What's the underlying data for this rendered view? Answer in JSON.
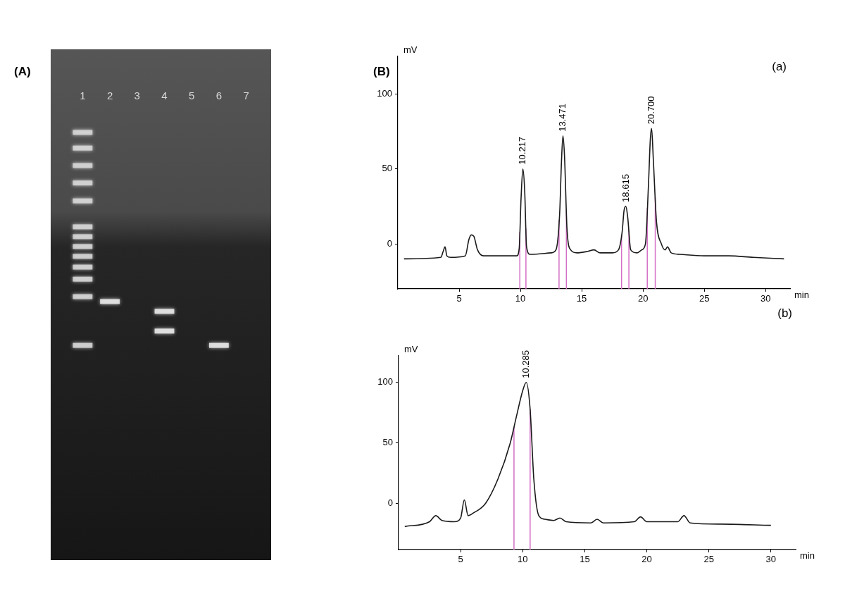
{
  "chart_data": [
    {
      "type": "gel",
      "title": "(A)",
      "categories": [
        "1",
        "2",
        "3",
        "4",
        "5",
        "6",
        "7"
      ],
      "bands": [
        [
          4.4,
          7.9,
          11.8,
          15.7,
          19.7,
          25.5,
          27.7,
          29.9,
          32.1,
          34.5,
          37.2,
          41.1,
          52
        ],
        [
          42.2
        ],
        [],
        [
          44.4,
          48.8
        ],
        [],
        [
          52
        ],
        []
      ],
      "ylim": [
        0,
        100
      ],
      "tick_labels": "x"
    },
    {
      "type": "line",
      "title": "(B)",
      "annotations": [
        "(a)"
      ],
      "x_label": "min",
      "y_label": "mV",
      "xlim": [
        0,
        32
      ],
      "xticks": [
        5,
        10,
        15,
        20,
        25,
        30
      ],
      "ylim": [
        -30,
        125
      ],
      "yticks": [
        0,
        50,
        100
      ],
      "grid": false,
      "x": [
        0.5,
        3.5,
        3.7,
        3.85,
        4.0,
        4.3,
        5.5,
        5.8,
        6.0,
        6.2,
        6.5,
        7,
        9.7,
        9.9,
        10.05,
        10.2,
        10.35,
        10.5,
        10.8,
        12.5,
        12.9,
        13.2,
        13.35,
        13.47,
        13.6,
        13.8,
        14.1,
        14.6,
        15.5,
        16,
        16.5,
        17.5,
        18.0,
        18.3,
        18.45,
        18.6,
        18.75,
        19.0,
        19.5,
        19.9,
        20.2,
        20.45,
        20.6,
        20.7,
        20.85,
        21.1,
        21.5,
        21.8,
        22.0,
        22.3,
        23,
        25,
        27,
        29,
        31.5
      ],
      "series": [
        {
          "color": "#1a1a1a",
          "values": [
            -10,
            -9,
            -5,
            -2,
            -8,
            -9,
            -8,
            3,
            6,
            5,
            -4,
            -8,
            -8,
            -3,
            30,
            50,
            35,
            -2,
            -7,
            -6,
            -4,
            20,
            55,
            72,
            58,
            10,
            -4,
            -6,
            -5,
            -4,
            -6,
            -6,
            -4,
            8,
            22,
            25,
            18,
            -4,
            -6,
            -4,
            0,
            40,
            70,
            77,
            55,
            15,
            0,
            -4,
            -2,
            -6,
            -7,
            -8,
            -8,
            -9,
            -10
          ]
        }
      ],
      "peak_labels": [
        {
          "value": 10.217,
          "label": "10.217"
        },
        {
          "value": 13.471,
          "label": "13.471"
        },
        {
          "value": 18.615,
          "label": "18.615"
        },
        {
          "value": 20.7,
          "label": "20.700"
        }
      ],
      "integration_marks": [
        [
          9.95,
          10.45
        ],
        [
          13.15,
          13.75
        ],
        [
          18.25,
          18.85
        ],
        [
          20.35,
          21.0
        ]
      ]
    },
    {
      "type": "line",
      "annotations": [
        "(b)"
      ],
      "x_label": "min",
      "y_label": "mV",
      "xlim": [
        0,
        32
      ],
      "xticks": [
        5,
        10,
        15,
        20,
        25,
        30
      ],
      "ylim": [
        -38,
        122
      ],
      "yticks": [
        0,
        50,
        100
      ],
      "grid": false,
      "x": [
        0.5,
        2.5,
        3.0,
        3.5,
        4.5,
        5.0,
        5.3,
        5.6,
        6.0,
        7,
        8,
        9,
        9.5,
        10.0,
        10.285,
        10.6,
        10.9,
        11.3,
        11.8,
        12.5,
        13.0,
        13.5,
        15.5,
        16,
        16.5,
        19,
        19.5,
        20,
        22.5,
        23,
        23.5,
        26,
        30
      ],
      "series": [
        {
          "color": "#1a1a1a",
          "values": [
            -19,
            -15,
            -10,
            -14,
            -15,
            -12,
            3,
            -10,
            -8,
            0,
            20,
            50,
            72,
            93,
            100,
            78,
            20,
            -10,
            -13,
            -14,
            -12,
            -15,
            -16,
            -13,
            -16,
            -15,
            -11,
            -15,
            -15,
            -10,
            -16,
            -17,
            -18
          ]
        }
      ],
      "peak_labels": [
        {
          "value": 10.285,
          "label": "10.285"
        }
      ],
      "integration_marks": [
        [
          9.3,
          10.6
        ]
      ]
    }
  ]
}
